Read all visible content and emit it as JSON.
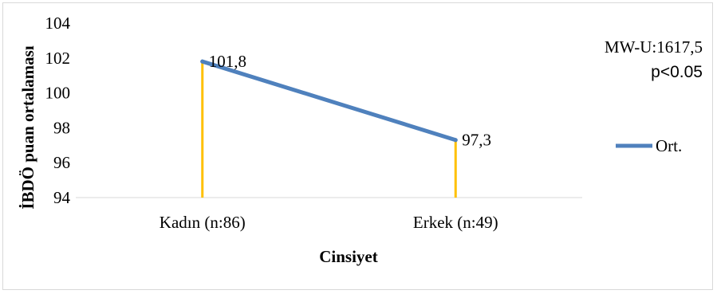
{
  "chart_data": {
    "type": "line",
    "title": "",
    "xlabel": "Cinsiyet",
    "ylabel": "İBDÖ puan ortalaması",
    "categories": [
      "Kadın (n:86)",
      "Erkek (n:49)"
    ],
    "ylim": [
      94,
      104
    ],
    "yticks": [
      "94",
      "96",
      "98",
      "100",
      "102",
      "104"
    ],
    "grid": false,
    "series": [
      {
        "name": "Ort.",
        "values": [
          101.8,
          97.3
        ],
        "data_labels": [
          "101,8",
          "97,3"
        ],
        "color": "#4f81bd"
      }
    ],
    "drop_lines": {
      "color": "#ffc000"
    },
    "annotations": [
      "MW-U:1617,5",
      "p<0.05"
    ],
    "legend_position": "right"
  }
}
